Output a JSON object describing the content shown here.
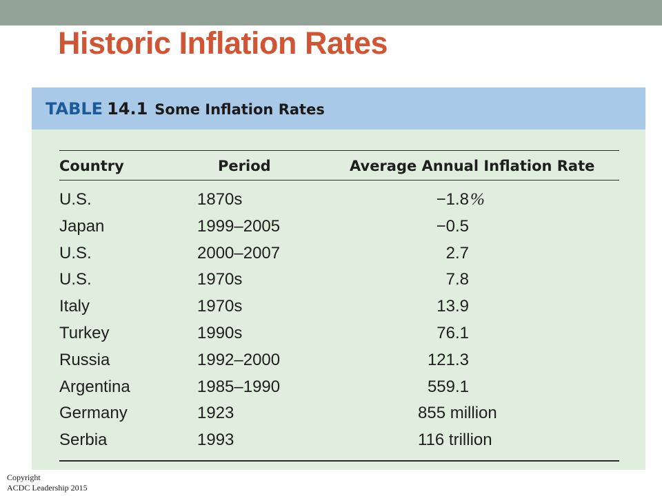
{
  "slide": {
    "title": "Historic Inflation Rates"
  },
  "table": {
    "caption_label": "TABLE",
    "caption_number": "14.1",
    "caption_text": "Some Inflation Rates",
    "columns": {
      "country": "Country",
      "period": "Period",
      "rate": "Average Annual Inflation Rate"
    },
    "rows": [
      {
        "country": "U.S.",
        "period": "1870s",
        "rate": "−1.8",
        "suffix": "%"
      },
      {
        "country": "Japan",
        "period": "1999–2005",
        "rate": "−0.5"
      },
      {
        "country": "U.S.",
        "period": "2000–2007",
        "rate": "2.7"
      },
      {
        "country": "U.S.",
        "period": "1970s",
        "rate": "7.8"
      },
      {
        "country": "Italy",
        "period": "1970s",
        "rate": "13.9"
      },
      {
        "country": "Turkey",
        "period": "1990s",
        "rate": "76.1"
      },
      {
        "country": "Russia",
        "period": "1992–2000",
        "rate": "121.3"
      },
      {
        "country": "Argentina",
        "period": "1985–1990",
        "rate": "559.1"
      },
      {
        "country": "Germany",
        "period": "1923",
        "rate": "855 million"
      },
      {
        "country": "Serbia",
        "period": "1993",
        "rate": "116 trillion"
      }
    ]
  },
  "footer": {
    "copyright_line1": "Copyright",
    "copyright_line2": "ACDC Leadership 2015"
  },
  "colors": {
    "top_bar": "#94a397",
    "title": "#cf5535",
    "table_background": "#dfeedd",
    "table_header_band": "#a9c9e9",
    "caption_label": "#1c5a9a"
  }
}
